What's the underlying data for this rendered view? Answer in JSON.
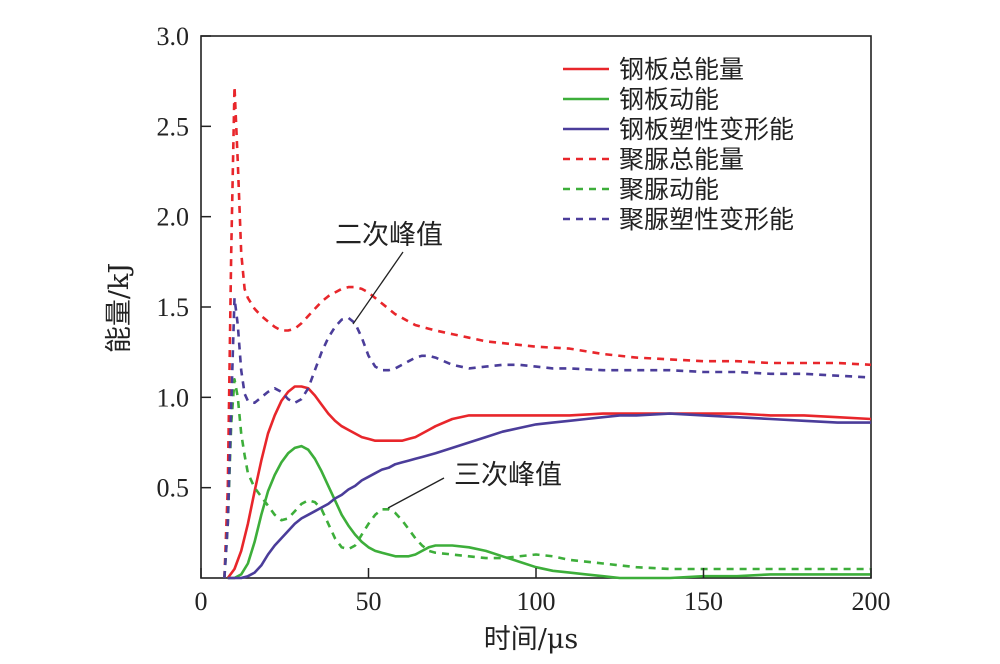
{
  "chart_data": {
    "type": "line",
    "xlabel": "时间/μs",
    "ylabel": "能量/kJ",
    "xlim": [
      0,
      200
    ],
    "ylim": [
      0,
      3.0
    ],
    "x_ticks": [
      0,
      50,
      100,
      150,
      200
    ],
    "x_tick_labels": [
      "0",
      "50",
      "100",
      "150",
      "200"
    ],
    "y_ticks": [
      0.5,
      1.0,
      1.5,
      2.0,
      2.5,
      3.0
    ],
    "y_tick_labels": [
      "0.5",
      "1.0",
      "1.5",
      "2.0",
      "2.5",
      "3.0"
    ],
    "grid": false,
    "legend_position": "top-right",
    "series": [
      {
        "name": "钢板总能量",
        "color": "#e8262b",
        "dash": "solid",
        "x": [
          8,
          10,
          12,
          14,
          16,
          18,
          20,
          22,
          24,
          26,
          28,
          30,
          32,
          34,
          36,
          38,
          40,
          42,
          44,
          46,
          48,
          50,
          52,
          54,
          56,
          58,
          60,
          62,
          64,
          66,
          68,
          70,
          75,
          80,
          85,
          90,
          100,
          110,
          120,
          130,
          140,
          150,
          160,
          170,
          180,
          190,
          200
        ],
        "y": [
          0,
          0.05,
          0.15,
          0.3,
          0.48,
          0.65,
          0.8,
          0.9,
          0.98,
          1.03,
          1.06,
          1.06,
          1.05,
          1.01,
          0.96,
          0.91,
          0.87,
          0.84,
          0.82,
          0.8,
          0.78,
          0.77,
          0.76,
          0.76,
          0.76,
          0.76,
          0.76,
          0.77,
          0.78,
          0.8,
          0.82,
          0.84,
          0.88,
          0.9,
          0.9,
          0.9,
          0.9,
          0.9,
          0.91,
          0.91,
          0.91,
          0.91,
          0.91,
          0.9,
          0.9,
          0.89,
          0.88
        ]
      },
      {
        "name": "钢板动能",
        "color": "#3dae3a",
        "dash": "solid",
        "x": [
          8,
          10,
          12,
          14,
          16,
          18,
          20,
          22,
          24,
          26,
          28,
          30,
          32,
          34,
          36,
          38,
          40,
          42,
          44,
          46,
          48,
          50,
          52,
          54,
          56,
          58,
          60,
          62,
          64,
          66,
          68,
          70,
          75,
          80,
          85,
          90,
          95,
          100,
          105,
          110,
          115,
          120,
          125,
          130,
          140,
          150,
          160,
          170,
          180,
          190,
          200
        ],
        "y": [
          0,
          0,
          0.02,
          0.08,
          0.2,
          0.35,
          0.48,
          0.57,
          0.64,
          0.69,
          0.72,
          0.73,
          0.71,
          0.66,
          0.59,
          0.51,
          0.43,
          0.35,
          0.29,
          0.24,
          0.2,
          0.17,
          0.15,
          0.14,
          0.13,
          0.12,
          0.12,
          0.12,
          0.13,
          0.15,
          0.17,
          0.18,
          0.18,
          0.17,
          0.15,
          0.12,
          0.09,
          0.06,
          0.04,
          0.03,
          0.02,
          0.01,
          0,
          0,
          0,
          0.01,
          0.01,
          0.02,
          0.02,
          0.02,
          0.02
        ]
      },
      {
        "name": "钢板塑性变形能",
        "color": "#4b3d9a",
        "dash": "solid",
        "x": [
          8,
          10,
          12,
          14,
          16,
          18,
          20,
          22,
          24,
          26,
          28,
          30,
          32,
          34,
          36,
          38,
          40,
          42,
          44,
          46,
          48,
          50,
          52,
          54,
          56,
          58,
          60,
          62,
          64,
          66,
          68,
          70,
          75,
          80,
          85,
          90,
          95,
          100,
          105,
          110,
          115,
          120,
          125,
          130,
          140,
          150,
          160,
          170,
          180,
          190,
          200
        ],
        "y": [
          0,
          0,
          0,
          0.01,
          0.03,
          0.07,
          0.13,
          0.18,
          0.22,
          0.26,
          0.3,
          0.33,
          0.35,
          0.37,
          0.39,
          0.41,
          0.44,
          0.46,
          0.49,
          0.51,
          0.54,
          0.56,
          0.58,
          0.6,
          0.61,
          0.63,
          0.64,
          0.65,
          0.66,
          0.67,
          0.68,
          0.69,
          0.72,
          0.75,
          0.78,
          0.81,
          0.83,
          0.85,
          0.86,
          0.87,
          0.88,
          0.89,
          0.9,
          0.9,
          0.91,
          0.9,
          0.89,
          0.88,
          0.87,
          0.86,
          0.86
        ]
      },
      {
        "name": "聚脲总能量",
        "color": "#e8262b",
        "dash": "dashed",
        "x": [
          7,
          8,
          9,
          10,
          11,
          12,
          13,
          14,
          16,
          18,
          20,
          22,
          24,
          26,
          28,
          30,
          32,
          34,
          36,
          38,
          40,
          42,
          44,
          46,
          48,
          50,
          52,
          54,
          56,
          58,
          60,
          62,
          64,
          66,
          68,
          70,
          75,
          80,
          85,
          90,
          100,
          110,
          120,
          130,
          140,
          150,
          160,
          170,
          180,
          190,
          200
        ],
        "y": [
          0,
          0.5,
          1.8,
          2.72,
          2.3,
          1.8,
          1.6,
          1.55,
          1.49,
          1.45,
          1.42,
          1.39,
          1.37,
          1.37,
          1.38,
          1.41,
          1.45,
          1.49,
          1.53,
          1.56,
          1.58,
          1.6,
          1.61,
          1.61,
          1.6,
          1.58,
          1.55,
          1.52,
          1.49,
          1.46,
          1.44,
          1.42,
          1.4,
          1.39,
          1.38,
          1.37,
          1.35,
          1.33,
          1.31,
          1.3,
          1.28,
          1.27,
          1.24,
          1.22,
          1.21,
          1.2,
          1.2,
          1.19,
          1.19,
          1.19,
          1.18
        ]
      },
      {
        "name": "聚脲动能",
        "color": "#3dae3a",
        "dash": "dashed",
        "x": [
          7,
          8,
          9,
          10,
          11,
          12,
          13,
          14,
          16,
          18,
          20,
          22,
          24,
          26,
          28,
          30,
          32,
          34,
          36,
          38,
          40,
          42,
          44,
          46,
          48,
          50,
          52,
          54,
          56,
          58,
          60,
          62,
          64,
          66,
          68,
          70,
          75,
          80,
          85,
          90,
          95,
          100,
          105,
          110,
          120,
          130,
          140,
          150,
          160,
          170,
          180,
          190,
          200
        ],
        "y": [
          0,
          0.3,
          0.85,
          1.1,
          1.0,
          0.8,
          0.68,
          0.58,
          0.5,
          0.45,
          0.4,
          0.35,
          0.32,
          0.33,
          0.37,
          0.41,
          0.43,
          0.42,
          0.38,
          0.3,
          0.22,
          0.17,
          0.16,
          0.18,
          0.24,
          0.3,
          0.35,
          0.38,
          0.38,
          0.36,
          0.32,
          0.27,
          0.22,
          0.18,
          0.15,
          0.14,
          0.13,
          0.12,
          0.11,
          0.11,
          0.12,
          0.13,
          0.12,
          0.1,
          0.08,
          0.06,
          0.05,
          0.05,
          0.05,
          0.05,
          0.05,
          0.05,
          0.05
        ]
      },
      {
        "name": "聚脲塑性变形能",
        "color": "#4b3d9a",
        "dash": "dashed",
        "x": [
          7,
          8,
          9,
          10,
          11,
          12,
          13,
          14,
          16,
          18,
          20,
          22,
          24,
          26,
          28,
          30,
          32,
          34,
          36,
          38,
          40,
          42,
          44,
          46,
          48,
          50,
          52,
          54,
          56,
          58,
          60,
          62,
          64,
          66,
          68,
          70,
          75,
          80,
          85,
          90,
          95,
          100,
          105,
          110,
          120,
          130,
          140,
          150,
          160,
          170,
          180,
          190,
          200
        ],
        "y": [
          0,
          0.3,
          0.95,
          1.55,
          1.4,
          1.15,
          1.02,
          0.98,
          0.97,
          1.0,
          1.03,
          1.05,
          1.03,
          0.99,
          0.97,
          0.99,
          1.05,
          1.15,
          1.25,
          1.33,
          1.39,
          1.43,
          1.44,
          1.41,
          1.33,
          1.23,
          1.17,
          1.15,
          1.15,
          1.16,
          1.18,
          1.2,
          1.22,
          1.23,
          1.23,
          1.22,
          1.18,
          1.16,
          1.17,
          1.18,
          1.18,
          1.17,
          1.16,
          1.16,
          1.15,
          1.15,
          1.15,
          1.14,
          1.14,
          1.13,
          1.13,
          1.12,
          1.11
        ]
      }
    ],
    "annotations": [
      {
        "text": "二次峰值",
        "target_x": 44,
        "target_y": 1.42
      },
      {
        "text": "三次峰值",
        "target_x": 53,
        "target_y": 0.37
      }
    ]
  }
}
